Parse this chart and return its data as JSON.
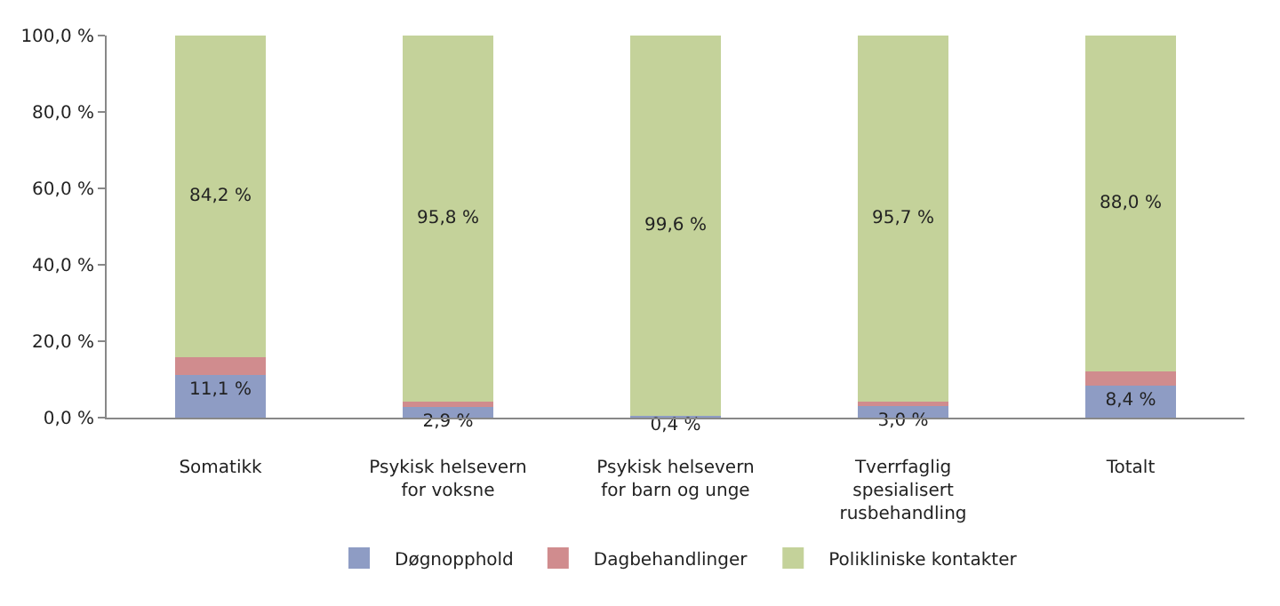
{
  "chart_data": {
    "type": "bar",
    "stacked": true,
    "categories": [
      "Somatikk",
      "Psykisk helsevern\nfor voksne",
      "Psykisk helsevern\nfor barn og unge",
      "Tverrfaglig\nspesialisert\nrusbehandling",
      "Totalt"
    ],
    "series": [
      {
        "name": "Døgnopphold",
        "color": "#8e9cc4",
        "values": [
          11.1,
          2.9,
          0.4,
          3.0,
          8.4
        ],
        "value_labels": [
          "11,1 %",
          "2,9 %",
          "0,4 %",
          "3,0 %",
          "8,4 %"
        ]
      },
      {
        "name": "Dagbehandlinger",
        "color": "#d08c8e",
        "values": [
          4.7,
          1.3,
          0.0,
          1.3,
          3.6
        ],
        "value_labels": [
          null,
          null,
          null,
          null,
          null
        ]
      },
      {
        "name": "Polikliniske kontakter",
        "color": "#c4d29a",
        "values": [
          84.2,
          95.8,
          99.6,
          95.7,
          88.0
        ],
        "value_labels": [
          "84,2 %",
          "95,8 %",
          "99,6 %",
          "95,7 %",
          "88,0 %"
        ]
      }
    ],
    "ylim": [
      0,
      100
    ],
    "yticks": [
      {
        "value": 0,
        "label": "0,0 %"
      },
      {
        "value": 20,
        "label": "20,0 %"
      },
      {
        "value": 40,
        "label": "40,0 %"
      },
      {
        "value": 60,
        "label": "60,0 %"
      },
      {
        "value": 80,
        "label": "80,0 %"
      },
      {
        "value": 100,
        "label": "100,0 %"
      }
    ],
    "grid": false,
    "legend": "bottom"
  }
}
